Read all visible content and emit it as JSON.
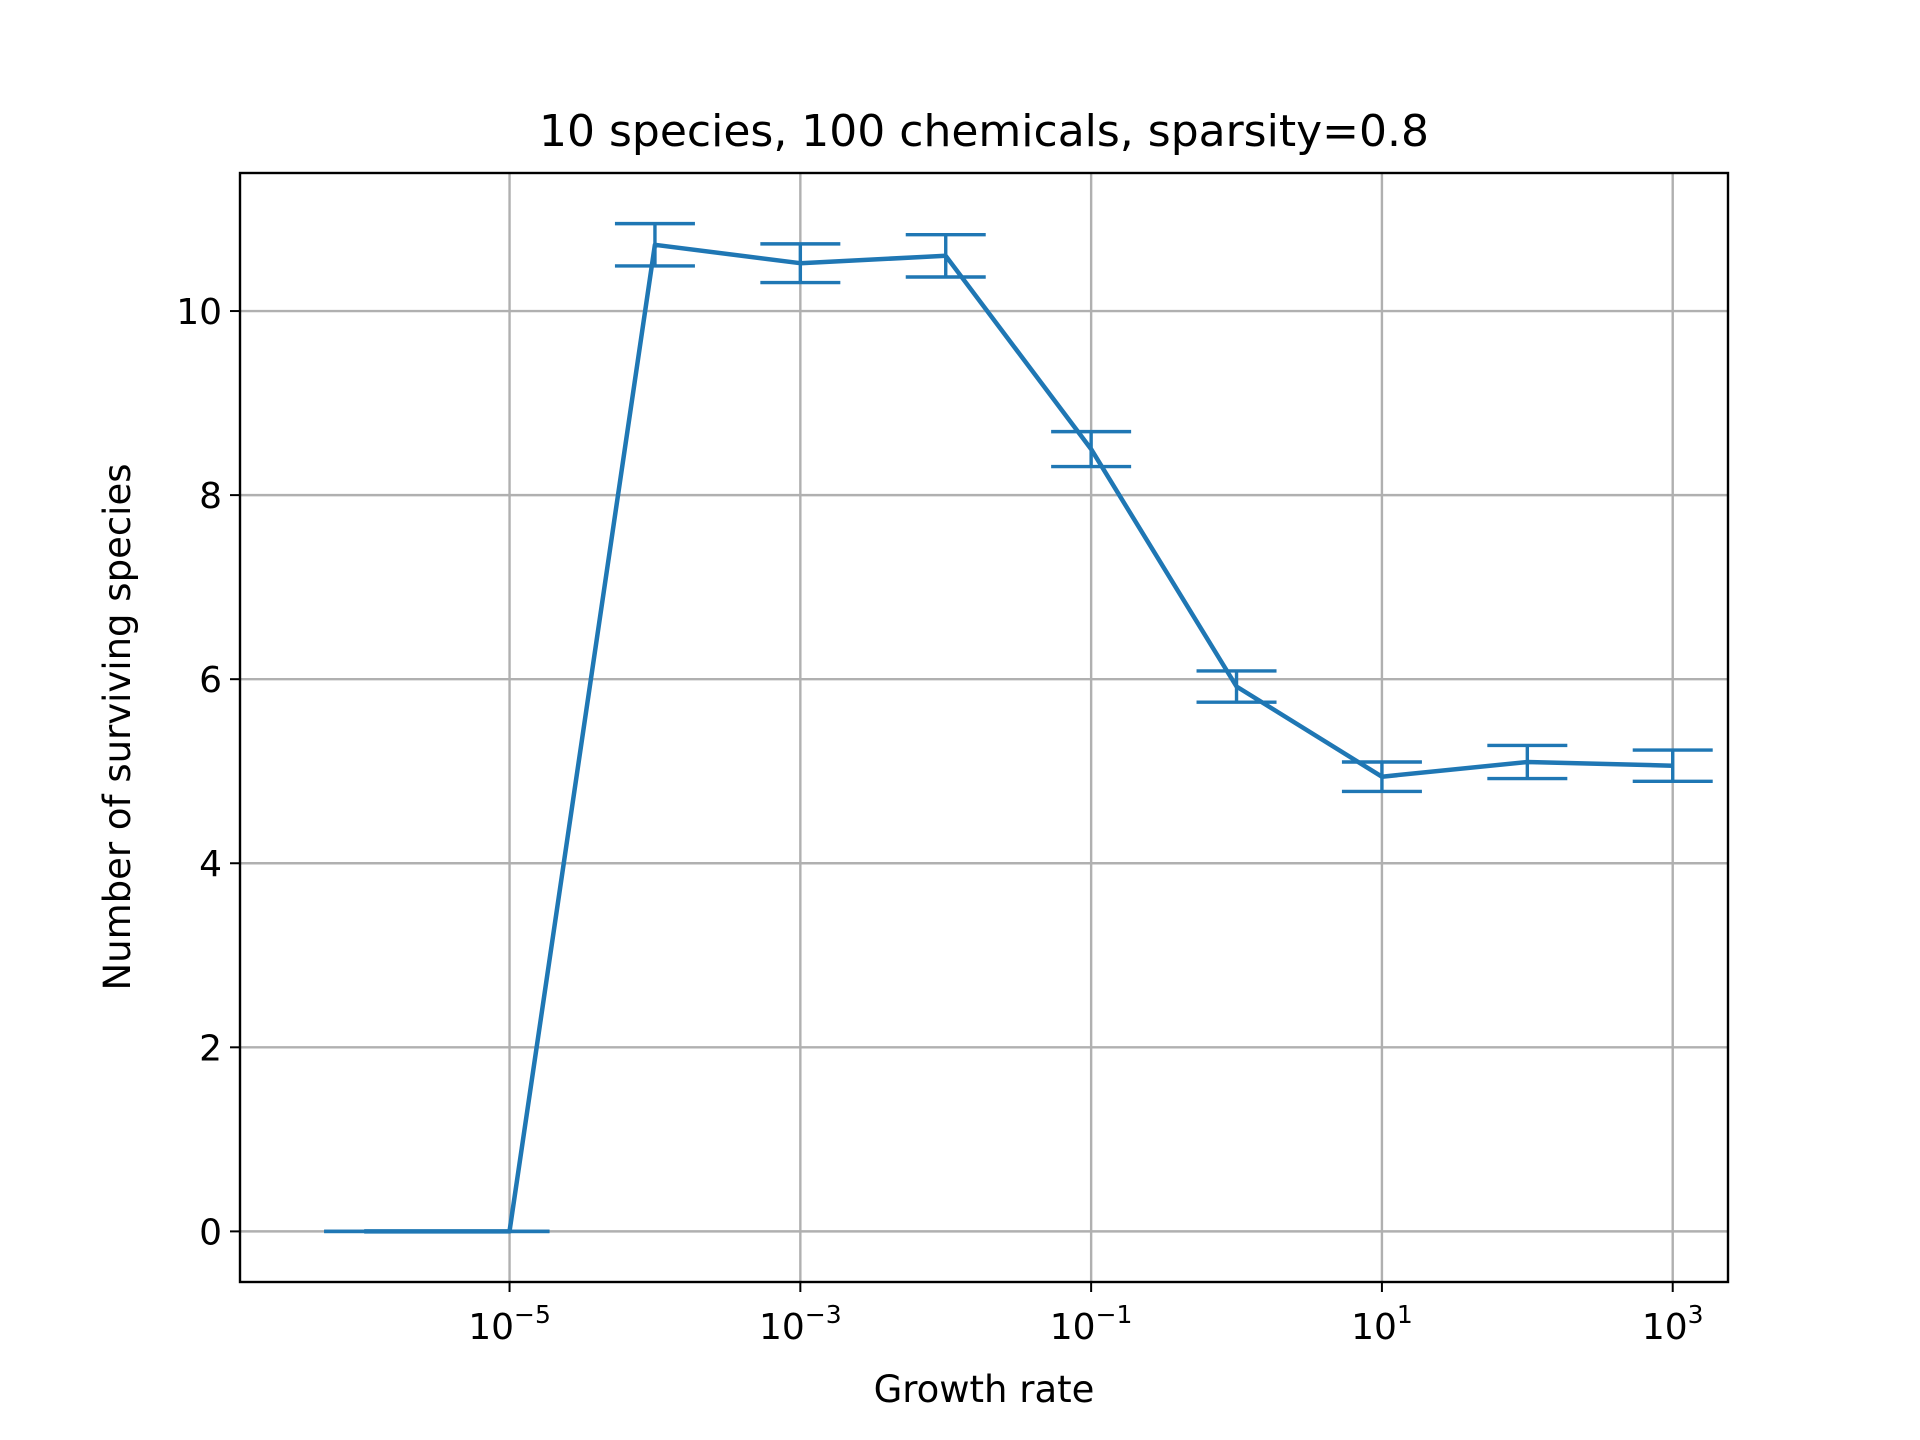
{
  "chart_data": {
    "type": "line",
    "title": "10 species, 100 chemicals, sparsity=0.8",
    "xlabel": "Growth rate",
    "ylabel": "Number of surviving species",
    "xscale": "log",
    "xlim": [
      1.4e-07,
      2400
    ],
    "ylim": [
      -0.55,
      11.5
    ],
    "grid": true,
    "xticks": [
      {
        "value": 1e-05,
        "base": "10",
        "exp": "−5"
      },
      {
        "value": 0.001,
        "base": "10",
        "exp": "−3"
      },
      {
        "value": 0.1,
        "base": "10",
        "exp": "−1"
      },
      {
        "value": 10,
        "base": "10",
        "exp": "1"
      },
      {
        "value": 1000,
        "base": "10",
        "exp": "3"
      }
    ],
    "yticks": [
      {
        "value": 0,
        "label": "0"
      },
      {
        "value": 2,
        "label": "2"
      },
      {
        "value": 4,
        "label": "4"
      },
      {
        "value": 6,
        "label": "6"
      },
      {
        "value": 8,
        "label": "8"
      },
      {
        "value": 10,
        "label": "10"
      }
    ],
    "series": [
      {
        "color": "#1f77b4",
        "x": [
          1e-06,
          1e-05,
          0.0001,
          0.001,
          0.01,
          0.1,
          1,
          10,
          100,
          1000
        ],
        "y": [
          0,
          0,
          10.72,
          10.52,
          10.6,
          8.5,
          5.92,
          4.94,
          5.1,
          5.06
        ],
        "yerr": [
          0,
          0,
          0.23,
          0.21,
          0.23,
          0.19,
          0.17,
          0.16,
          0.18,
          0.17
        ]
      }
    ]
  }
}
